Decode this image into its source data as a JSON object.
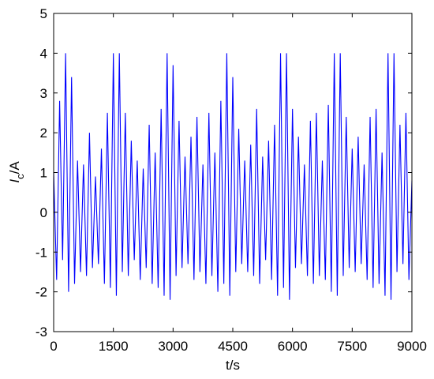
{
  "chart_data": {
    "type": "line",
    "xlabel": "t/s",
    "ylabel_symbol": "I",
    "ylabel_subscript": "c",
    "ylabel_unit": "/A",
    "x": [
      0,
      75,
      150,
      225,
      300,
      375,
      450,
      525,
      600,
      675,
      750,
      825,
      900,
      975,
      1050,
      1125,
      1200,
      1275,
      1350,
      1425,
      1500,
      1575,
      1650,
      1725,
      1800,
      1875,
      1950,
      2025,
      2100,
      2175,
      2250,
      2325,
      2400,
      2475,
      2550,
      2625,
      2700,
      2775,
      2850,
      2925,
      3000,
      3075,
      3150,
      3225,
      3300,
      3375,
      3450,
      3525,
      3600,
      3675,
      3750,
      3825,
      3900,
      3975,
      4050,
      4125,
      4200,
      4275,
      4350,
      4425,
      4500,
      4575,
      4650,
      4725,
      4800,
      4875,
      4950,
      5025,
      5100,
      5175,
      5250,
      5325,
      5400,
      5475,
      5550,
      5625,
      5700,
      5775,
      5850,
      5925,
      6000,
      6075,
      6150,
      6225,
      6300,
      6375,
      6450,
      6525,
      6600,
      6675,
      6750,
      6825,
      6900,
      6975,
      7050,
      7125,
      7200,
      7275,
      7350,
      7425,
      7500,
      7575,
      7650,
      7725,
      7800,
      7875,
      7950,
      8025,
      8100,
      8175,
      8250,
      8325,
      8400,
      8475,
      8550,
      8625,
      8700,
      8775,
      8850,
      8925,
      9000
    ],
    "series": [
      {
        "name": "Ic",
        "color": "#0000ff",
        "values": [
          1,
          -1.7,
          2.8,
          -1.2,
          4,
          -2,
          3.4,
          -1.8,
          1.3,
          -1.5,
          1.2,
          -1.6,
          2,
          -1.4,
          0.9,
          -1.3,
          1.6,
          -1.8,
          2.5,
          -1.9,
          4,
          -2.1,
          4,
          -1.5,
          2.5,
          -1.6,
          1.8,
          -1.2,
          1.3,
          -1.7,
          1.1,
          -1.4,
          2.2,
          -1.8,
          1.5,
          -1.9,
          2.6,
          -2.1,
          4,
          -2.2,
          3.7,
          -1.6,
          2.3,
          -1.4,
          1.4,
          -1.3,
          1.9,
          -1.7,
          2.4,
          -1.5,
          1.2,
          -1.8,
          2.5,
          -1.6,
          1.5,
          -2,
          2.8,
          -1.8,
          4,
          -2.1,
          3.4,
          -1.5,
          2.1,
          -1.3,
          1.3,
          -1.5,
          1.7,
          -1.6,
          2.6,
          -1.8,
          1.4,
          -1.2,
          1.8,
          -1.7,
          2.2,
          -2.1,
          4,
          -1.9,
          4,
          -2.2,
          2.6,
          -1.4,
          1.9,
          -1.3,
          1.2,
          -1.6,
          2.3,
          -1.8,
          2.5,
          -1.6,
          1.3,
          -1.7,
          2.7,
          -2,
          4,
          -2.1,
          4,
          -1.6,
          2.4,
          -1.4,
          1.6,
          -1.5,
          1.9,
          -1.3,
          1.2,
          -1.7,
          2.4,
          -1.9,
          2.6,
          -1.8,
          1.5,
          -2.1,
          4,
          -2.2,
          4,
          -1.5,
          2.2,
          -1.3,
          2.5,
          -1.7,
          0.8
        ]
      }
    ],
    "xlim": [
      0,
      9000
    ],
    "xticks": [
      0,
      1500,
      3000,
      4500,
      6000,
      7500,
      9000
    ],
    "ylim": [
      -3,
      5
    ],
    "yticks": [
      -3,
      -2,
      -1,
      0,
      1,
      2,
      3,
      4,
      5
    ],
    "grid": false
  }
}
